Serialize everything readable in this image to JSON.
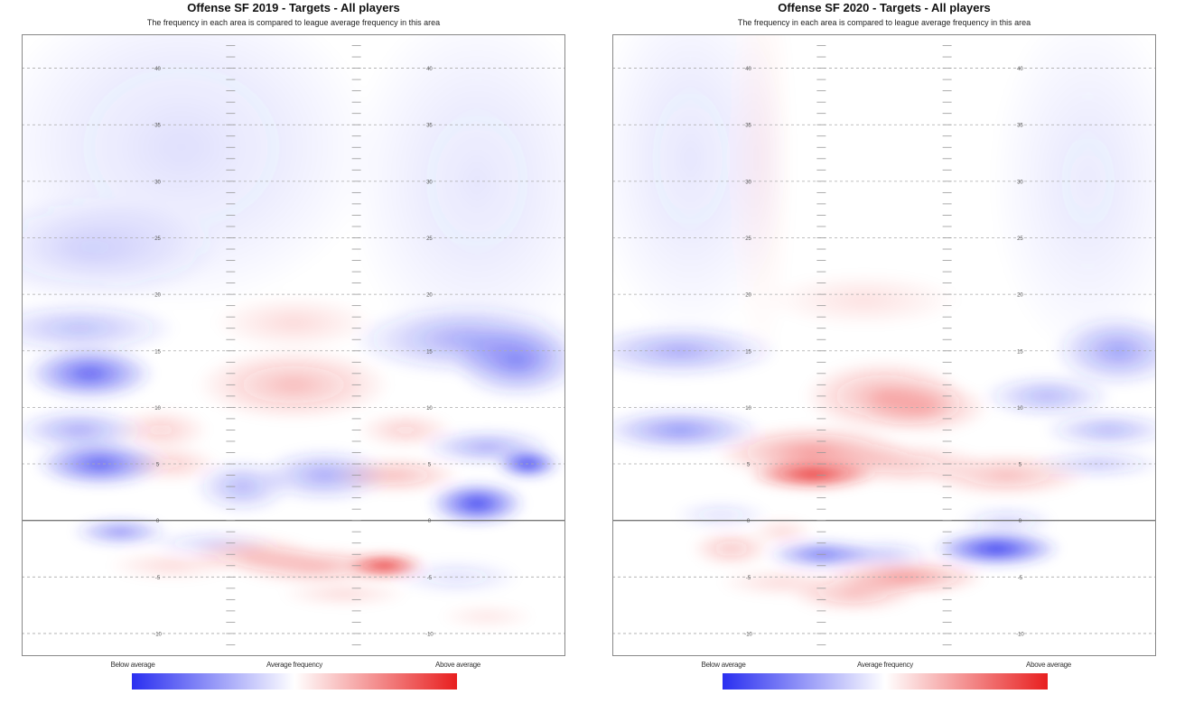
{
  "colors": {
    "below": "#2a2ff0",
    "average": "#ffffff",
    "above": "#e81f1f",
    "grid": "#aaaaaa",
    "los": "#777777"
  },
  "legend": {
    "below": "Below average",
    "average": "Average frequency",
    "above": "Above average"
  },
  "chart_data": [
    {
      "type": "heatmap",
      "title": "Offense SF 2019 - Targets - All players",
      "subtitle": "The frequency in each area is compared to league average frequency in this area",
      "x_range": [
        -26.67,
        26.67
      ],
      "y_range": [
        -12,
        43
      ],
      "y_ticks": [
        40,
        35,
        30,
        25,
        20,
        15,
        10,
        5,
        0,
        -5,
        -10
      ],
      "y_tick_labels": [
        "40",
        "35",
        "30",
        "25",
        "20",
        "15",
        "10",
        "5",
        "0",
        "-5",
        "-10"
      ],
      "line_of_scrimmage_y": 0,
      "grid": true,
      "value_scale": [
        -1,
        1
      ],
      "blobs": [
        {
          "x": -11,
          "y": 33,
          "sx": 12,
          "sy": 9,
          "v": -0.15
        },
        {
          "x": 18,
          "y": 30,
          "sx": 8,
          "sy": 10,
          "v": -0.12
        },
        {
          "x": -20,
          "y": 24,
          "sx": 8,
          "sy": 3,
          "v": -0.2
        },
        {
          "x": 0,
          "y": 17.5,
          "sx": 5,
          "sy": 1.5,
          "v": 0.15
        },
        {
          "x": 0,
          "y": 12,
          "sx": 6,
          "sy": 2,
          "v": 0.3
        },
        {
          "x": -21,
          "y": 17,
          "sx": 6,
          "sy": 1.5,
          "v": -0.3
        },
        {
          "x": -20,
          "y": 13,
          "sx": 4,
          "sy": 1.5,
          "v": -0.75
        },
        {
          "x": 17,
          "y": 16,
          "sx": 7,
          "sy": 2,
          "v": -0.4
        },
        {
          "x": 22,
          "y": 14,
          "sx": 4,
          "sy": 2,
          "v": -0.55
        },
        {
          "x": -21,
          "y": 8,
          "sx": 4,
          "sy": 1.2,
          "v": -0.4
        },
        {
          "x": -13,
          "y": 8,
          "sx": 3,
          "sy": 1.2,
          "v": 0.2
        },
        {
          "x": -19,
          "y": 5,
          "sx": 4,
          "sy": 1.3,
          "v": -0.75
        },
        {
          "x": -12,
          "y": 5,
          "sx": 3,
          "sy": 1,
          "v": 0.2
        },
        {
          "x": -5,
          "y": 3,
          "sx": 3,
          "sy": 1.5,
          "v": -0.35
        },
        {
          "x": 3,
          "y": 4,
          "sx": 4,
          "sy": 1.5,
          "v": -0.4
        },
        {
          "x": 10,
          "y": 4,
          "sx": 4,
          "sy": 1,
          "v": 0.3
        },
        {
          "x": 11,
          "y": 8,
          "sx": 3,
          "sy": 1,
          "v": 0.2
        },
        {
          "x": 19,
          "y": 6.5,
          "sx": 4,
          "sy": 1,
          "v": -0.4
        },
        {
          "x": 23,
          "y": 5,
          "sx": 2,
          "sy": 0.8,
          "v": -0.95
        },
        {
          "x": 18,
          "y": 1.5,
          "sx": 3,
          "sy": 1.2,
          "v": -0.9
        },
        {
          "x": -17,
          "y": -1,
          "sx": 3,
          "sy": 0.8,
          "v": -0.5
        },
        {
          "x": -8,
          "y": -2,
          "sx": 4,
          "sy": 0.7,
          "v": -0.2
        },
        {
          "x": -12,
          "y": -4,
          "sx": 4,
          "sy": 0.8,
          "v": 0.15
        },
        {
          "x": -4,
          "y": -3,
          "sx": 4,
          "sy": 1,
          "v": 0.3
        },
        {
          "x": 2,
          "y": -4,
          "sx": 5,
          "sy": 1,
          "v": 0.35
        },
        {
          "x": 9,
          "y": -4,
          "sx": 2.5,
          "sy": 0.7,
          "v": 0.9
        },
        {
          "x": 5,
          "y": -6.5,
          "sx": 4,
          "sy": 0.7,
          "v": 0.15
        },
        {
          "x": 16,
          "y": -5,
          "sx": 4,
          "sy": 1,
          "v": -0.15
        },
        {
          "x": 19,
          "y": -8.5,
          "sx": 3,
          "sy": 0.7,
          "v": 0.1
        }
      ]
    },
    {
      "type": "heatmap",
      "title": "Offense SF 2020 - Targets - All players",
      "subtitle": "The frequency in each area is compared to league average frequency in this area",
      "x_range": [
        -26.67,
        26.67
      ],
      "y_range": [
        -12,
        43
      ],
      "y_ticks": [
        40,
        35,
        30,
        25,
        20,
        15,
        10,
        5,
        0,
        -5,
        -10
      ],
      "y_tick_labels": [
        "40",
        "35",
        "30",
        "25",
        "20",
        "15",
        "10",
        "5",
        "0",
        "-5",
        "-10"
      ],
      "line_of_scrimmage_y": 0,
      "grid": true,
      "value_scale": [
        -1,
        1
      ],
      "blobs": [
        {
          "x": -19,
          "y": 32,
          "sx": 6,
          "sy": 10,
          "v": -0.12
        },
        {
          "x": -12,
          "y": 32,
          "sx": 2,
          "sy": 12,
          "v": 0.06
        },
        {
          "x": 20,
          "y": 30,
          "sx": 6,
          "sy": 10,
          "v": -0.1
        },
        {
          "x": -2,
          "y": 19.5,
          "sx": 6,
          "sy": 1.5,
          "v": 0.12
        },
        {
          "x": -20,
          "y": 15,
          "sx": 6,
          "sy": 1.5,
          "v": -0.4
        },
        {
          "x": 23,
          "y": 15,
          "sx": 4,
          "sy": 2,
          "v": -0.45
        },
        {
          "x": -20,
          "y": 8,
          "sx": 5,
          "sy": 1.2,
          "v": -0.5
        },
        {
          "x": 0,
          "y": 11,
          "sx": 5,
          "sy": 2,
          "v": 0.35
        },
        {
          "x": 4,
          "y": 10,
          "sx": 4,
          "sy": 1.5,
          "v": 0.3
        },
        {
          "x": 16,
          "y": 11,
          "sx": 4,
          "sy": 1.2,
          "v": -0.35
        },
        {
          "x": 22,
          "y": 8,
          "sx": 4,
          "sy": 1,
          "v": -0.35
        },
        {
          "x": -7,
          "y": 6,
          "sx": 6,
          "sy": 1.5,
          "v": 0.45
        },
        {
          "x": -7,
          "y": 4,
          "sx": 4,
          "sy": 0.8,
          "v": 0.9
        },
        {
          "x": 2,
          "y": 5,
          "sx": 5,
          "sy": 1.2,
          "v": 0.25
        },
        {
          "x": 12,
          "y": 4,
          "sx": 5,
          "sy": 1.2,
          "v": 0.3
        },
        {
          "x": 21,
          "y": 5,
          "sx": 4,
          "sy": 0.8,
          "v": -0.25
        },
        {
          "x": -16,
          "y": 0.5,
          "sx": 3,
          "sy": 0.8,
          "v": -0.15
        },
        {
          "x": 12,
          "y": 0,
          "sx": 3,
          "sy": 0.8,
          "v": -0.2
        },
        {
          "x": -15,
          "y": -2.5,
          "sx": 2.5,
          "sy": 1,
          "v": 0.25
        },
        {
          "x": -10,
          "y": -1,
          "sx": 2,
          "sy": 0.8,
          "v": 0.15
        },
        {
          "x": -6,
          "y": -3,
          "sx": 3.5,
          "sy": 0.8,
          "v": -0.65
        },
        {
          "x": 0,
          "y": -3,
          "sx": 3,
          "sy": 0.8,
          "v": -0.25
        },
        {
          "x": 11,
          "y": -2.5,
          "sx": 4,
          "sy": 1,
          "v": -0.95
        },
        {
          "x": -10,
          "y": -5.5,
          "sx": 4,
          "sy": 0.8,
          "v": 0.15
        },
        {
          "x": 2,
          "y": -5,
          "sx": 5,
          "sy": 1,
          "v": 0.45
        },
        {
          "x": -3,
          "y": -6.5,
          "sx": 4,
          "sy": 1,
          "v": 0.3
        }
      ]
    }
  ]
}
